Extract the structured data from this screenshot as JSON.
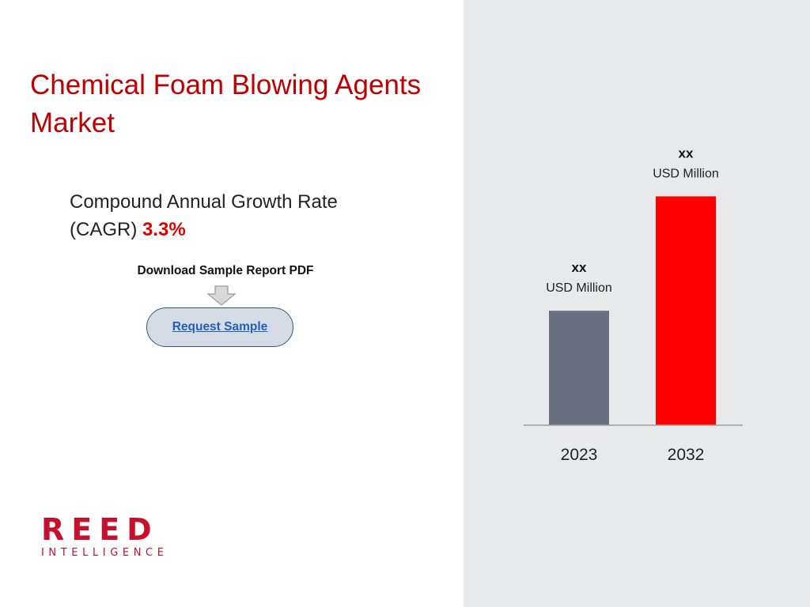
{
  "title": "Chemical Foam Blowing Agents Market",
  "cagr": {
    "label": "Compound Annual Growth Rate (CAGR)",
    "value": "3.3%"
  },
  "download_label": "Download Sample Report PDF",
  "request_button_label": "Request Sample",
  "logo": {
    "main": "REED",
    "sub": "INTELLIGENCE"
  },
  "colors": {
    "title": "#c00000",
    "cagr_value": "#e00000",
    "bar_2023": "#6b7080",
    "bar_2032": "#ff0000",
    "panel": "#e8e9eb",
    "brand": "#c8102e"
  },
  "chart_data": {
    "type": "bar",
    "categories": [
      "2023",
      "2032"
    ],
    "values": [
      38,
      76
    ],
    "value_labels": [
      "xx",
      "xx"
    ],
    "unit_label": "USD Million",
    "ylim": [
      0,
      100
    ],
    "grid": false,
    "legend": "none"
  }
}
